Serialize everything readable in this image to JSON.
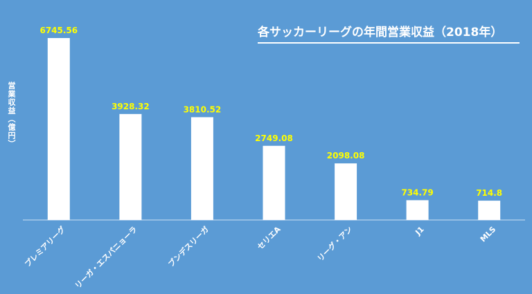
{
  "chart_data": {
    "type": "bar",
    "title": "各サッカーリーグの年間営業収益（2018年）",
    "ylabel": "営業収益（億円）",
    "xlabel": "",
    "categories": [
      "プレミアリーグ",
      "リーガ・エスパニョーラ",
      "ブンデスリーガ",
      "セリエA",
      "リーグ・アン",
      "J1",
      "MLS"
    ],
    "values": [
      6745.56,
      3928.32,
      3810.52,
      2749.08,
      2098.08,
      734.79,
      714.8
    ],
    "value_labels": [
      "6745.56",
      "3928.32",
      "3810.52",
      "2749.08",
      "2098.08",
      "734.79",
      "714.8"
    ],
    "ylim": [
      0,
      6745.56
    ],
    "grid": false,
    "colors": {
      "background": "#5b9bd5",
      "bar": "#ffffff",
      "value_label": "#ffff00",
      "text": "#ffffff"
    }
  }
}
